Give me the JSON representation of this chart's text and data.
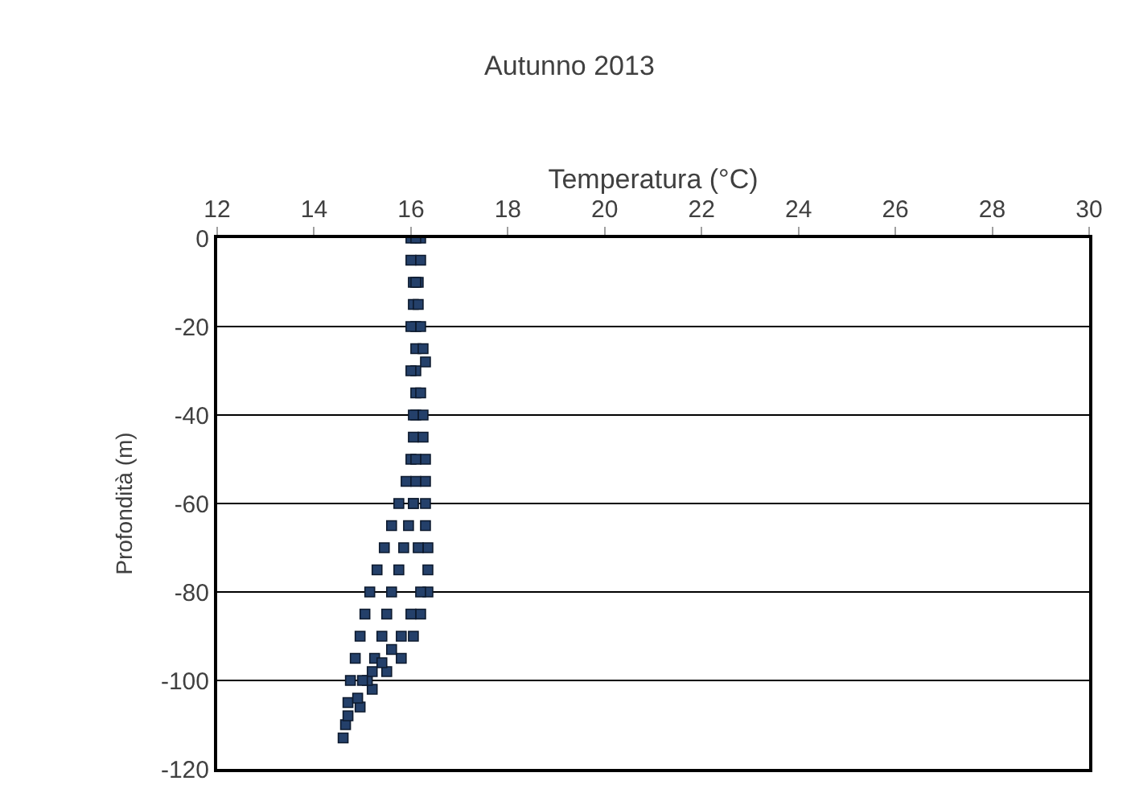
{
  "chart_data": {
    "type": "scatter",
    "title": "Autunno 2013",
    "xlabel": "Temperatura (°C)",
    "ylabel": "Profondità (m)",
    "xlim": [
      12,
      30
    ],
    "xticks": [
      12,
      14,
      16,
      18,
      20,
      22,
      24,
      26,
      28,
      30
    ],
    "ylim": [
      -120,
      0
    ],
    "yticks": [
      -120,
      -100,
      -80,
      -60,
      -40,
      -20,
      0
    ],
    "grid": "y",
    "marker": "square",
    "series": [
      {
        "color": "#24406a",
        "x": [
          16.0,
          16.0,
          16.05,
          16.05,
          16.1,
          16.1,
          16.1,
          16.1,
          16.1,
          16.05,
          16.0,
          15.9,
          15.75,
          15.6,
          15.45,
          15.3,
          15.15,
          15.05,
          14.95,
          14.85,
          14.75,
          14.7,
          14.65,
          14.6,
          16.2,
          16.2,
          16.15,
          16.15,
          16.2,
          16.25,
          16.3,
          16.2,
          16.25,
          16.25,
          16.3,
          16.3,
          16.3,
          16.3,
          16.35,
          16.35,
          16.35,
          16.2,
          16.05,
          15.8,
          15.5,
          15.2,
          14.95,
          16.1,
          16.1,
          16.0,
          16.0,
          16.05,
          16.1,
          16.1,
          16.05,
          15.95,
          15.85,
          15.75,
          15.6,
          15.5,
          15.4,
          15.25,
          15.1,
          14.9,
          14.7,
          16.05,
          16.15,
          16.2,
          16.0,
          15.8,
          15.6,
          15.4,
          15.2,
          15.0
        ],
        "values": [
          0,
          -5,
          -10,
          -15,
          -20,
          -25,
          -30,
          -35,
          -40,
          -45,
          -50,
          -55,
          -60,
          -65,
          -70,
          -75,
          -80,
          -85,
          -90,
          -95,
          -100,
          -105,
          -110,
          -113,
          0,
          -5,
          -10,
          -15,
          -20,
          -25,
          -28,
          -35,
          -40,
          -45,
          -50,
          -55,
          -60,
          -65,
          -70,
          -75,
          -80,
          -85,
          -90,
          -95,
          -98,
          -102,
          -106,
          0,
          -10,
          -20,
          -30,
          -40,
          -50,
          -55,
          -60,
          -65,
          -70,
          -75,
          -80,
          -85,
          -90,
          -95,
          -100,
          -104,
          -108,
          -60,
          -70,
          -80,
          -85,
          -90,
          -93,
          -96,
          -98,
          -100
        ]
      }
    ]
  }
}
